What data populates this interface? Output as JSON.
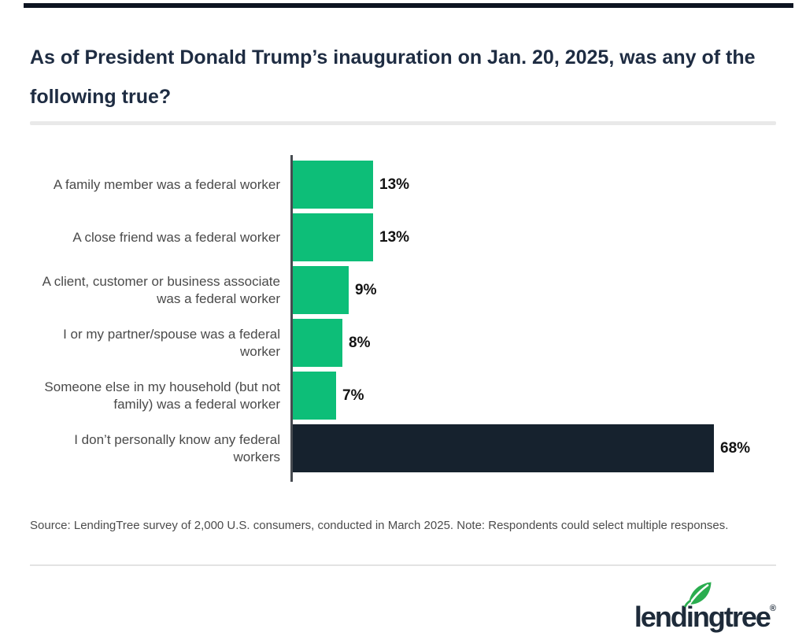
{
  "title": "As of President Donald Trump’s inauguration on Jan. 20, 2025, was any of the following true?",
  "chart_data": {
    "type": "bar",
    "orientation": "horizontal",
    "title": "As of President Donald Trump’s inauguration on Jan. 20, 2025, was any of the following true?",
    "categories": [
      "A family member was a federal worker",
      "A close friend was a federal worker",
      "A client, customer or business associate was a federal worker",
      "I or my partner/spouse was a federal worker",
      "Someone else in my household (but not family) was a federal worker",
      "I don’t personally know any federal workers"
    ],
    "values": [
      13,
      13,
      9,
      8,
      7,
      68
    ],
    "value_labels": [
      "13%",
      "13%",
      "9%",
      "8%",
      "7%",
      "68%"
    ],
    "bar_colors": [
      "#0dbe78",
      "#0dbe78",
      "#0dbe78",
      "#0dbe78",
      "#0dbe78",
      "#16222e"
    ],
    "xlim": [
      0,
      68
    ],
    "grid": false,
    "legend": "none",
    "xlabel": "",
    "ylabel": ""
  },
  "source_note": "Source: LendingTree survey of 2,000 U.S. consumers, conducted in March 2025. Note: Respondents could select multiple responses.",
  "logo": {
    "text": "lendingtree",
    "registered": "®"
  },
  "colors": {
    "bar_green": "#0dbe78",
    "bar_navy": "#16222e",
    "title_navy": "#1e2c42",
    "label_gray": "#4a4a4a",
    "axis_gray": "#474b51",
    "divider_gray": "#e9e9e9",
    "top_rule": "#0d1421",
    "leaf_green": "#2aad4f",
    "logo_navy": "#1e2b3a"
  }
}
